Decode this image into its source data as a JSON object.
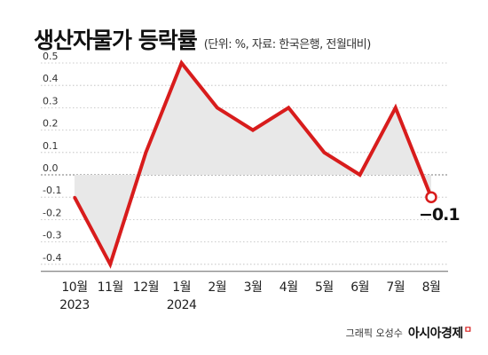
{
  "title": "생산자물가 등락률",
  "subtitle": "(단위: %, 자료: 한국은행, 전월대비)",
  "credit": {
    "text": "그래픽 오성수",
    "brand": "아시아경제"
  },
  "colors": {
    "line": "#d81c1c",
    "fill": "#e8e8e8",
    "grid": "#bbbbbb",
    "axis": "#666666"
  },
  "chart_data": {
    "type": "line",
    "categories": [
      "10월",
      "11월",
      "12월",
      "1월",
      "2월",
      "3월",
      "4월",
      "5월",
      "6월",
      "7월",
      "8월"
    ],
    "year_labels": [
      "2023",
      "",
      "",
      "2024",
      "",
      "",
      "",
      "",
      "",
      "",
      ""
    ],
    "values": [
      -0.1,
      -0.4,
      0.1,
      0.5,
      0.3,
      0.2,
      0.3,
      0.1,
      0.0,
      0.3,
      -0.1
    ],
    "yticks": [
      "0.5",
      "0.4",
      "0.3",
      "0.2",
      "0.1",
      "0.0",
      "-0.1",
      "-0.2",
      "-0.3",
      "-0.4"
    ],
    "ylim": [
      -0.4,
      0.5
    ],
    "last_value_label": "−0.1",
    "grid": "dotted horizontal",
    "area_fill_to_zero": true
  }
}
